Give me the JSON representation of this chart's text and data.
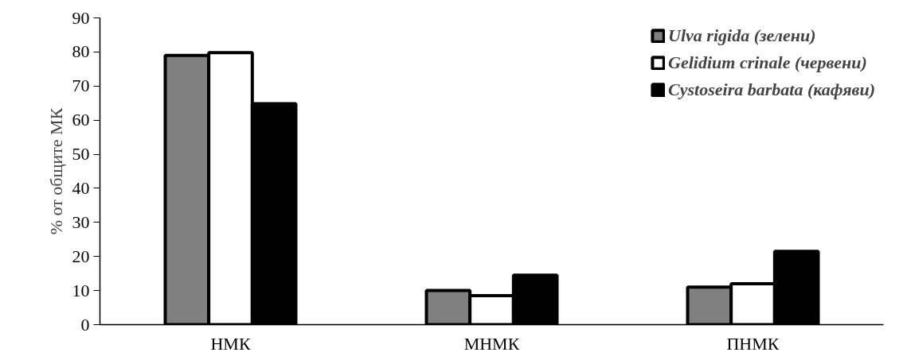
{
  "chart_data": {
    "type": "bar",
    "ylabel": "% от общите МК",
    "categories": [
      "НМК",
      "МНМК",
      "ПНМК"
    ],
    "series": [
      {
        "name": "Ulva rigida (зелени)",
        "color": "#808080",
        "values": [
          79,
          10,
          11
        ]
      },
      {
        "name": "Gelidium crinale (червени)",
        "color": "#ffffff",
        "values": [
          79.8,
          8.5,
          12
        ]
      },
      {
        "name": "Cystoseira barbata (кафяви)",
        "color": "#000000",
        "values": [
          64.8,
          14.5,
          21.5
        ]
      }
    ],
    "ylim": [
      0,
      90
    ],
    "yticks": [
      0,
      10,
      20,
      30,
      40,
      50,
      60,
      70,
      80,
      90
    ],
    "grid": false,
    "legend": "top right"
  }
}
